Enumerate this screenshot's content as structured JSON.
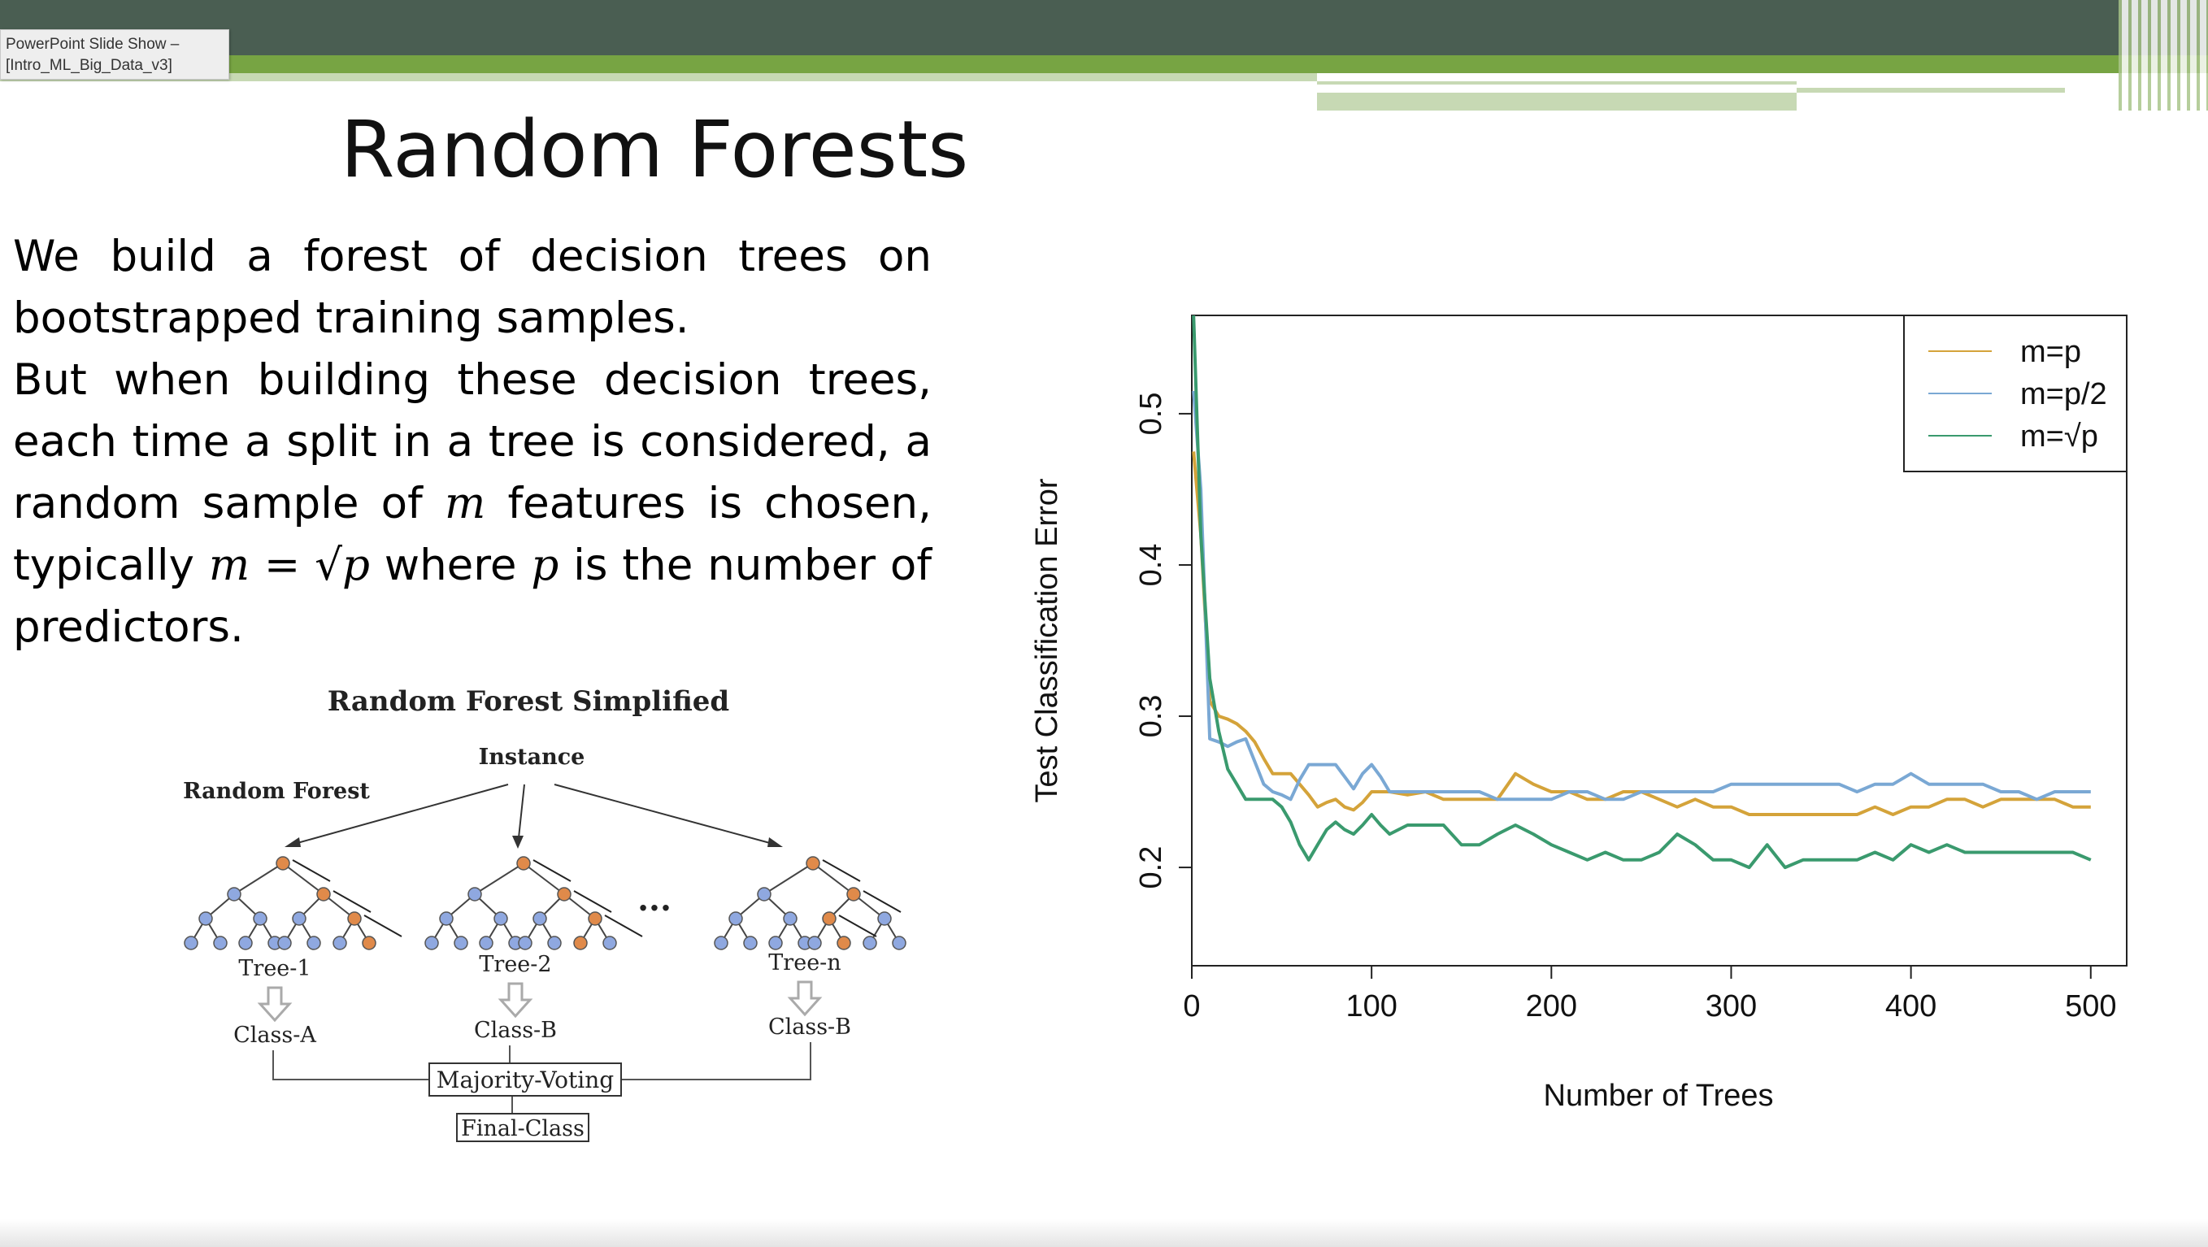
{
  "window": {
    "tab_line1": "PowerPoint Slide Show –",
    "tab_line2": "[Intro_ML_Big_Data_v3]"
  },
  "slide": {
    "title": "Random Forests",
    "para1": "We build a forest of decision trees on bootstrapped training samples.",
    "para2_a": "But when building these decision trees, each time a split in a tree is considered, a random sample of ",
    "para2_m": "m",
    "para2_b": " features is chosen, typically ",
    "para2_formula": "m = √p",
    "para2_c": " where ",
    "para2_p": "p",
    "para2_d": " is the number of predictors."
  },
  "diagram": {
    "title": "Random Forest Simplified",
    "instance": "Instance",
    "forest_label": "Random Forest",
    "ellipsis": "...",
    "trees": [
      {
        "name": "Tree-1",
        "class": "Class-A"
      },
      {
        "name": "Tree-2",
        "class": "Class-B"
      },
      {
        "name": "Tree-n",
        "class": "Class-B"
      }
    ],
    "voting": "Majority-Voting",
    "final": "Final-Class",
    "colors": {
      "node": "#8fa8e0",
      "active": "#e08a4a"
    }
  },
  "chart_data": {
    "type": "line",
    "xlabel": "Number of Trees",
    "ylabel": "Test Classification Error",
    "xlim": [
      0,
      520
    ],
    "ylim": [
      0.135,
      0.565
    ],
    "xticks": [
      0,
      100,
      200,
      300,
      400,
      500
    ],
    "yticks": [
      0.2,
      0.3,
      0.4,
      0.5
    ],
    "legend_position": "top-right",
    "x": [
      1,
      5,
      10,
      15,
      20,
      25,
      30,
      35,
      40,
      45,
      50,
      55,
      60,
      65,
      70,
      75,
      80,
      85,
      90,
      95,
      100,
      105,
      110,
      120,
      130,
      140,
      150,
      160,
      170,
      180,
      190,
      200,
      210,
      220,
      230,
      240,
      250,
      260,
      270,
      280,
      290,
      300,
      310,
      320,
      330,
      340,
      350,
      360,
      370,
      380,
      390,
      400,
      410,
      420,
      430,
      440,
      450,
      460,
      470,
      480,
      490,
      500
    ],
    "series": [
      {
        "name": "m=p",
        "color": "#d4a33a",
        "values": [
          0.475,
          0.42,
          0.31,
          0.3,
          0.298,
          0.295,
          0.29,
          0.283,
          0.272,
          0.262,
          0.262,
          0.262,
          0.255,
          0.248,
          0.24,
          0.243,
          0.245,
          0.24,
          0.238,
          0.243,
          0.25,
          0.25,
          0.25,
          0.248,
          0.25,
          0.245,
          0.245,
          0.245,
          0.245,
          0.262,
          0.255,
          0.25,
          0.25,
          0.245,
          0.245,
          0.25,
          0.25,
          0.245,
          0.24,
          0.245,
          0.24,
          0.24,
          0.235,
          0.235,
          0.235,
          0.235,
          0.235,
          0.235,
          0.235,
          0.24,
          0.235,
          0.24,
          0.24,
          0.245,
          0.245,
          0.24,
          0.245,
          0.245,
          0.245,
          0.245,
          0.24,
          0.24
        ]
      },
      {
        "name": "m=p/2",
        "color": "#7aa8d4",
        "values": [
          0.515,
          0.45,
          0.285,
          0.283,
          0.28,
          0.283,
          0.285,
          0.27,
          0.255,
          0.25,
          0.248,
          0.245,
          0.258,
          0.268,
          0.268,
          0.268,
          0.268,
          0.26,
          0.252,
          0.262,
          0.268,
          0.26,
          0.25,
          0.25,
          0.25,
          0.25,
          0.25,
          0.25,
          0.245,
          0.245,
          0.245,
          0.245,
          0.25,
          0.25,
          0.245,
          0.245,
          0.25,
          0.25,
          0.25,
          0.25,
          0.25,
          0.255,
          0.255,
          0.255,
          0.255,
          0.255,
          0.255,
          0.255,
          0.25,
          0.255,
          0.255,
          0.262,
          0.255,
          0.255,
          0.255,
          0.255,
          0.25,
          0.25,
          0.245,
          0.25,
          0.25,
          0.25
        ]
      },
      {
        "name": "m=√p",
        "color": "#3a9a6e",
        "values": [
          0.565,
          0.42,
          0.325,
          0.29,
          0.265,
          0.255,
          0.245,
          0.245,
          0.245,
          0.245,
          0.24,
          0.23,
          0.215,
          0.205,
          0.215,
          0.225,
          0.23,
          0.225,
          0.222,
          0.228,
          0.235,
          0.228,
          0.222,
          0.228,
          0.228,
          0.228,
          0.215,
          0.215,
          0.222,
          0.228,
          0.222,
          0.215,
          0.21,
          0.205,
          0.21,
          0.205,
          0.205,
          0.21,
          0.222,
          0.215,
          0.205,
          0.205,
          0.2,
          0.215,
          0.2,
          0.205,
          0.205,
          0.205,
          0.205,
          0.21,
          0.205,
          0.215,
          0.21,
          0.215,
          0.21,
          0.21,
          0.21,
          0.21,
          0.21,
          0.21,
          0.21,
          0.205
        ]
      }
    ]
  }
}
